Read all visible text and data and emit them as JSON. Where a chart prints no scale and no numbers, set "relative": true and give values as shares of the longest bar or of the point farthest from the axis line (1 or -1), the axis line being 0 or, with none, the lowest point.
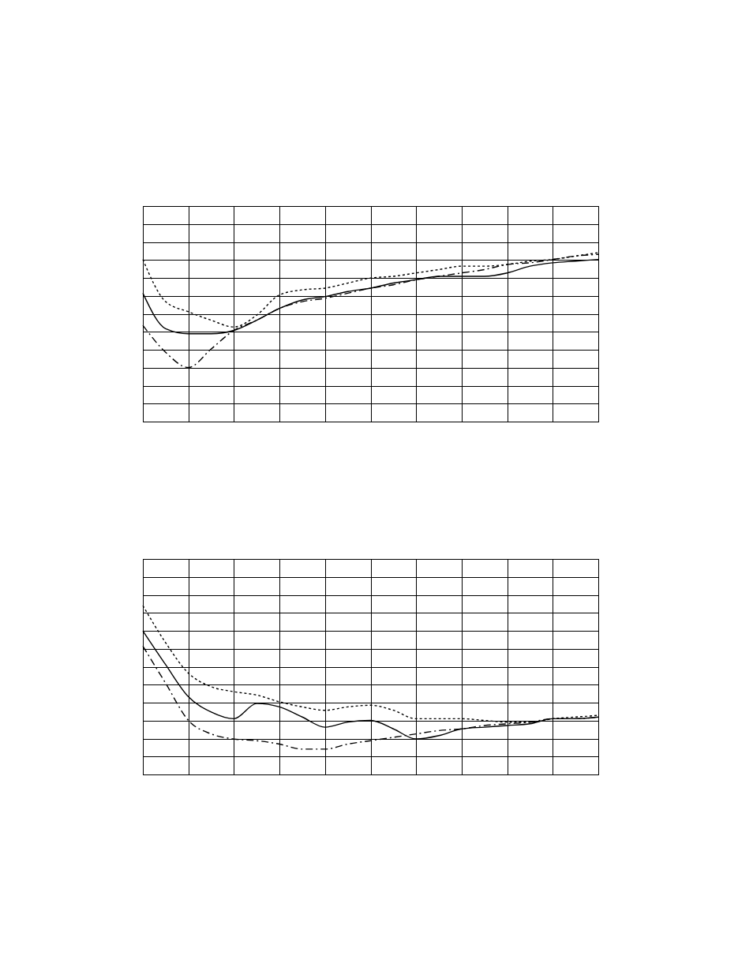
{
  "chart_data": [
    {
      "type": "line",
      "relative": true,
      "grid": true,
      "tick_labels": false,
      "categories": [
        null,
        null,
        null,
        null,
        null,
        null,
        null,
        null,
        null,
        null,
        null,
        null,
        null,
        null,
        null,
        null,
        null,
        null,
        null,
        null,
        null
      ],
      "series": [
        {
          "color": "#000000",
          "line_style": "dashed",
          "values": [
            0.57,
            0.41,
            0.32,
            0.43,
            0.54,
            0.6,
            0.67,
            0.71,
            0.73,
            0.76,
            0.79,
            0.81,
            0.84,
            0.86,
            0.88,
            0.9,
            0.93,
            0.94,
            0.96,
            0.98,
            0.99
          ]
        },
        {
          "color": "#000000",
          "line_style": "solid",
          "values": [
            0.76,
            0.55,
            0.52,
            0.52,
            0.54,
            0.6,
            0.67,
            0.72,
            0.74,
            0.77,
            0.79,
            0.82,
            0.84,
            0.86,
            0.86,
            0.86,
            0.88,
            0.92,
            0.94,
            0.95,
            0.96
          ]
        },
        {
          "color": "#000000",
          "line_style": "dotted",
          "values": [
            0.96,
            0.71,
            0.65,
            0.6,
            0.56,
            0.63,
            0.75,
            0.78,
            0.79,
            0.82,
            0.85,
            0.86,
            0.88,
            0.9,
            0.92,
            0.92,
            0.93,
            0.95,
            0.96,
            0.98,
            1.0
          ]
        }
      ]
    },
    {
      "type": "line",
      "relative": true,
      "grid": true,
      "tick_labels": false,
      "categories": [
        null,
        null,
        null,
        null,
        null,
        null,
        null,
        null,
        null,
        null,
        null,
        null,
        null,
        null,
        null,
        null,
        null,
        null,
        null,
        null,
        null
      ],
      "series": [
        {
          "color": "#000000",
          "line_style": "dashed",
          "values": [
            0.76,
            0.54,
            0.32,
            0.24,
            0.21,
            0.2,
            0.18,
            0.15,
            0.15,
            0.18,
            0.2,
            0.22,
            0.24,
            0.26,
            0.27,
            0.29,
            0.3,
            0.31,
            0.33,
            0.33,
            0.34
          ]
        },
        {
          "color": "#000000",
          "line_style": "solid",
          "values": [
            0.85,
            0.65,
            0.46,
            0.37,
            0.33,
            0.42,
            0.4,
            0.34,
            0.28,
            0.31,
            0.32,
            0.27,
            0.21,
            0.23,
            0.27,
            0.28,
            0.29,
            0.3,
            0.33,
            0.33,
            0.34
          ]
        },
        {
          "color": "#000000",
          "line_style": "dotted",
          "values": [
            1.0,
            0.78,
            0.6,
            0.52,
            0.49,
            0.47,
            0.43,
            0.4,
            0.38,
            0.4,
            0.41,
            0.38,
            0.33,
            0.33,
            0.33,
            0.32,
            0.31,
            0.31,
            0.33,
            0.34,
            0.35
          ]
        }
      ]
    }
  ]
}
